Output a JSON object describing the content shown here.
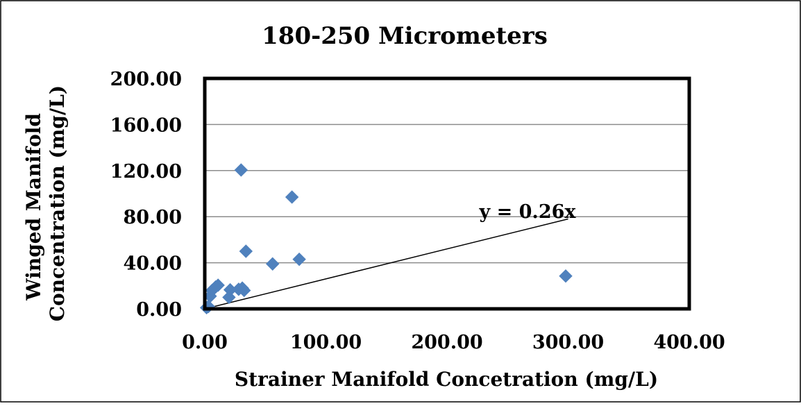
{
  "chart_data": {
    "type": "scatter",
    "title": "180-250 Micrometers",
    "xlabel": "Strainer Manifold Concetration (mg/L)",
    "ylabel_lines": [
      "Winged Manifold",
      "Concentration (mg/L)"
    ],
    "xlim": [
      0,
      400
    ],
    "ylim": [
      0,
      200
    ],
    "x_ticks": [
      "0.00",
      "100.00",
      "200.00",
      "300.00",
      "400.00"
    ],
    "y_ticks": [
      "0.00",
      "40.00",
      "80.00",
      "120.00",
      "160.00",
      "200.00"
    ],
    "x_tick_values": [
      0,
      100,
      200,
      300,
      400
    ],
    "y_tick_values": [
      0,
      40,
      80,
      120,
      160,
      200
    ],
    "grid": "horizontal",
    "legend": "none",
    "series": [
      {
        "color": "#4f81bd",
        "marker": "diamond",
        "points": [
          [
            1.5,
            1.0
          ],
          [
            3.0,
            2.0
          ],
          [
            4.5,
            11.0
          ],
          [
            6.0,
            16.0
          ],
          [
            9.0,
            19.0
          ],
          [
            11.0,
            20.5
          ],
          [
            20.0,
            10.0
          ],
          [
            21.0,
            16.5
          ],
          [
            28.0,
            17.0
          ],
          [
            30.0,
            120.5
          ],
          [
            31.0,
            18.0
          ],
          [
            32.5,
            16.0
          ],
          [
            34.0,
            50.0
          ],
          [
            56.0,
            39.0
          ],
          [
            72.0,
            97.0
          ],
          [
            78.0,
            43.0
          ],
          [
            298.0,
            28.5
          ]
        ]
      }
    ],
    "trendline": {
      "label": "y = 0.26x",
      "slope": 0.26,
      "x_range": [
        0,
        300
      ]
    }
  }
}
